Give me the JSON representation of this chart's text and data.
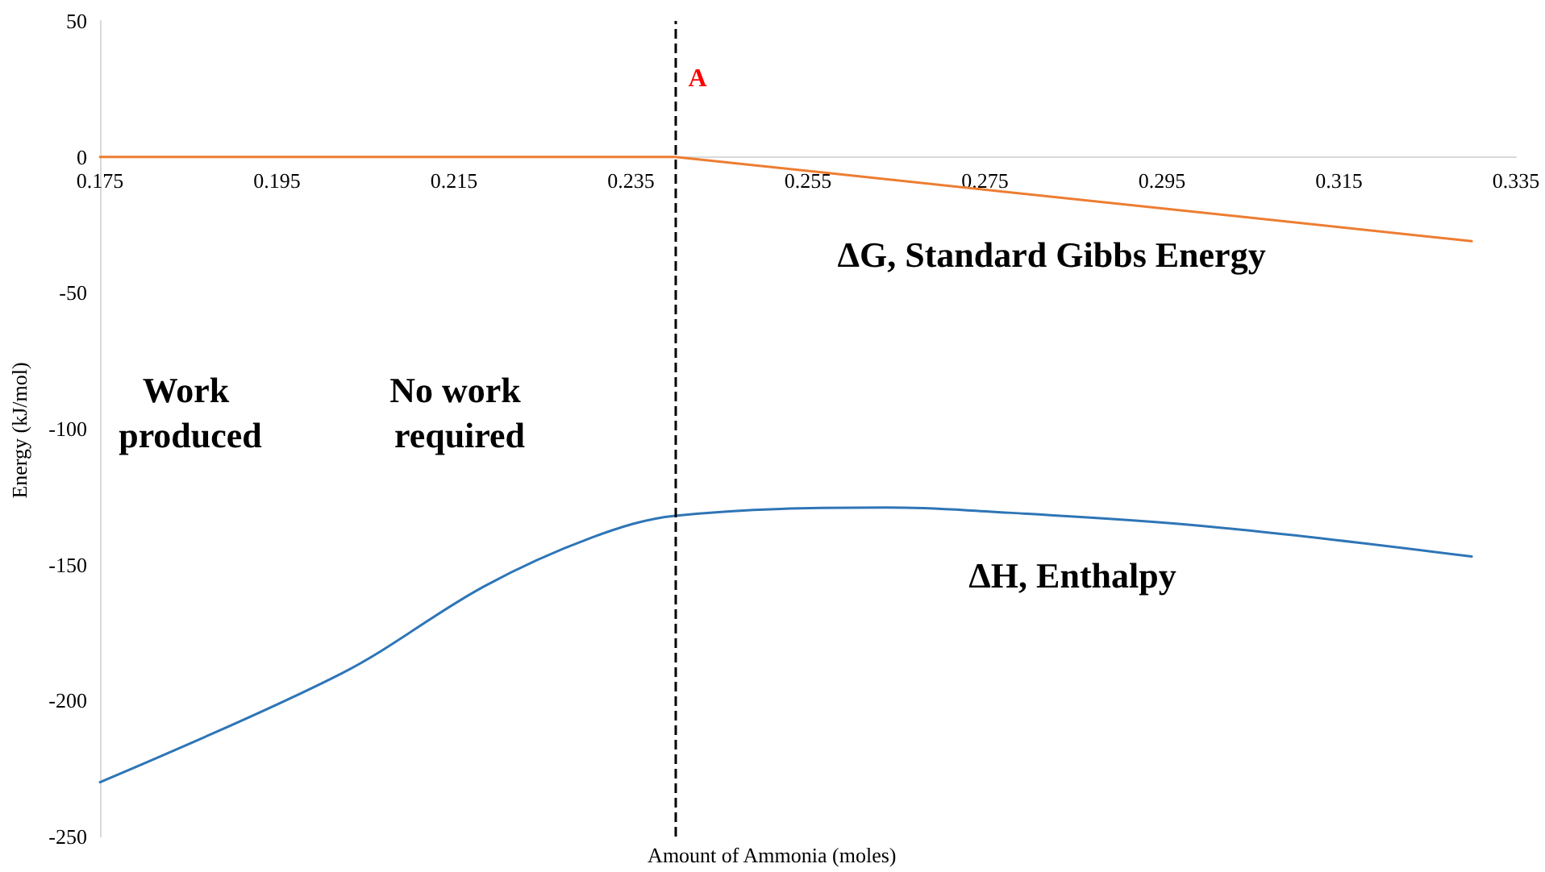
{
  "chart_data": {
    "type": "line",
    "xlabel": "Amount of Ammonia (moles)",
    "ylabel": "Energy (kJ/mol)",
    "xlim": [
      0.175,
      0.335
    ],
    "xticks": [
      0.175,
      0.195,
      0.215,
      0.235,
      0.255,
      0.275,
      0.295,
      0.315,
      0.335
    ],
    "ylim": [
      -250,
      50
    ],
    "yticks": [
      -250,
      -200,
      -150,
      -100,
      -50,
      0,
      50
    ],
    "grid": false,
    "marker": "none",
    "line_style": "solid",
    "series": [
      {
        "color": "#ed7d31",
        "x": [
          0.175,
          0.24,
          0.33
        ],
        "values": [
          0,
          0,
          -31
        ]
      },
      {
        "color": "#2e75b6",
        "x": [
          0.175,
          0.2023,
          0.2184,
          0.2306,
          0.24,
          0.2639,
          0.273,
          0.3004,
          0.33
        ],
        "values": [
          -230,
          -190,
          -158,
          -140,
          -132,
          -129,
          -130,
          -136,
          -147
        ]
      }
    ],
    "ref_lines": [
      {
        "axis": "x",
        "value": 0.24,
        "label": "A",
        "color": "#000000",
        "line_style": "dashed"
      }
    ],
    "annotations": [
      "ΔG, Standard Gibbs Energy",
      "Work produced",
      "No work required",
      "ΔH, Enthalpy"
    ]
  }
}
